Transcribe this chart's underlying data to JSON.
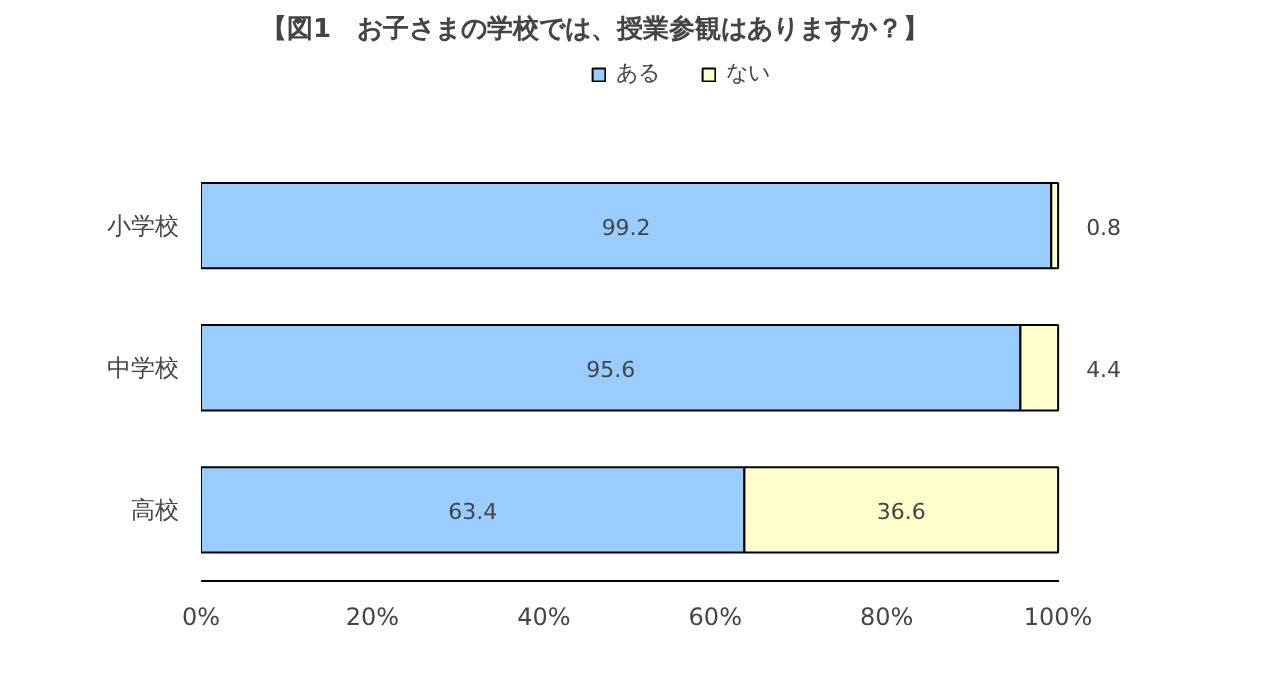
{
  "chart_data": {
    "type": "bar",
    "orientation": "horizontal",
    "stacked": true,
    "title": "【図1　お子さまの学校では、授業参観はありますか？】",
    "categories": [
      "小学校",
      "中学校",
      "高校"
    ],
    "series": [
      {
        "name": "ある",
        "color": "#99ccff",
        "values": [
          99.2,
          95.6,
          63.4
        ]
      },
      {
        "name": "ない",
        "color": "#ffffcc",
        "values": [
          0.8,
          4.4,
          36.6
        ]
      }
    ],
    "xlim": [
      0,
      100
    ],
    "xticks": [
      {
        "value": 0,
        "label": "0%"
      },
      {
        "value": 20,
        "label": "20%"
      },
      {
        "value": 40,
        "label": "40%"
      },
      {
        "value": 60,
        "label": "60%"
      },
      {
        "value": 80,
        "label": "80%"
      },
      {
        "value": 100,
        "label": "100%"
      }
    ],
    "data_labels": true,
    "legend": "top",
    "grid": false
  }
}
